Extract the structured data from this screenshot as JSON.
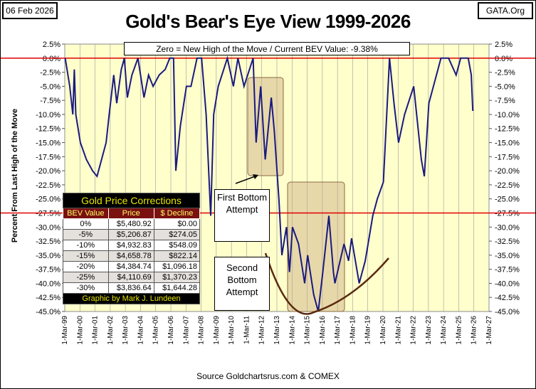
{
  "header": {
    "date": "06 Feb 2026",
    "site": "GATA.Org",
    "title": "Gold's Bear's Eye View 1999-2026",
    "legend_box": "Zero = New High of the Move / Current BEV Value:  -9.38%"
  },
  "footer": {
    "source": "Source Goldchartsrus.com  & COMEX"
  },
  "table": {
    "title": "Gold Price Corrections",
    "headers": [
      "BEV Value",
      "Price",
      "$ Decline"
    ],
    "rows": [
      [
        "0%",
        "$5,480.92",
        "$0.00"
      ],
      [
        "-5%",
        "$5,206.87",
        "$274.05"
      ],
      [
        "-10%",
        "$4,932.83",
        "$548.09"
      ],
      [
        "-15%",
        "$4,658.78",
        "$822.14"
      ],
      [
        "-20%",
        "$4,384.74",
        "$1,096.18"
      ],
      [
        "-25%",
        "$4,110.69",
        "$1,370.23"
      ],
      [
        "-30%",
        "$3,836.64",
        "$1,644.28"
      ]
    ],
    "credit": "Graphic by Mark J. Lundeen"
  },
  "annotations": {
    "first": "First Bottom Attempt",
    "second": "Second Bottom Attempt"
  },
  "chart_data": {
    "type": "line",
    "title": "Gold's Bear's Eye View 1999-2026",
    "ylabel": "Percent From Last High of the Move",
    "xlabel": "",
    "ylim": [
      -45,
      2.5
    ],
    "xlim": [
      1999.17,
      2027.17
    ],
    "yticks": [
      "2.5%",
      "0.0%",
      "-2.5%",
      "-5.0%",
      "-7.5%",
      "-10.0%",
      "-12.5%",
      "-15.0%",
      "-17.5%",
      "-20.0%",
      "-22.5%",
      "-25.0%",
      "-27.5%",
      "-30.0%",
      "-32.5%",
      "-35.0%",
      "-37.5%",
      "-40.0%",
      "-42.5%",
      "-45.0%"
    ],
    "xticks": [
      "1-Mar-99",
      "1-Mar-00",
      "1-Mar-01",
      "1-Mar-02",
      "1-Mar-03",
      "1-Mar-04",
      "1-Mar-05",
      "1-Mar-06",
      "1-Mar-07",
      "1-Mar-08",
      "1-Mar-09",
      "1-Mar-10",
      "1-Mar-11",
      "1-Mar-12",
      "1-Mar-13",
      "1-Mar-14",
      "1-Mar-15",
      "1-Mar-16",
      "1-Mar-17",
      "1-Mar-18",
      "1-Mar-19",
      "1-Mar-20",
      "1-Mar-21",
      "1-Mar-22",
      "1-Mar-23",
      "1-Mar-24",
      "1-Mar-25",
      "1-Mar-26",
      "1-Mar-27"
    ],
    "reference_lines": [
      0,
      -27.5
    ],
    "colors": {
      "series": "#1a1a80",
      "ref": "#e00000",
      "plot_bg": "#ffffcc"
    },
    "series": [
      {
        "name": "BEV",
        "x": [
          1999.2,
          1999.5,
          1999.7,
          1999.8,
          1999.9,
          2000.2,
          2000.6,
          2001.0,
          2001.3,
          2001.6,
          2001.9,
          2002.1,
          2002.4,
          2002.6,
          2002.9,
          2003.1,
          2003.3,
          2003.6,
          2004.0,
          2004.4,
          2004.7,
          2005.0,
          2005.4,
          2005.8,
          2006.1,
          2006.35,
          2006.5,
          2006.8,
          2007.2,
          2007.5,
          2007.9,
          2008.2,
          2008.5,
          2008.8,
          2009.0,
          2009.3,
          2009.9,
          2010.3,
          2010.6,
          2011.0,
          2011.6,
          2011.8,
          2012.1,
          2012.4,
          2012.8,
          2013.0,
          2013.3,
          2013.5,
          2013.8,
          2014.0,
          2014.2,
          2014.6,
          2015.0,
          2015.2,
          2015.6,
          2015.9,
          2016.2,
          2016.6,
          2016.9,
          2017.0,
          2017.6,
          2017.9,
          2018.1,
          2018.6,
          2019.0,
          2019.5,
          2019.8,
          2020.2,
          2020.6,
          2020.9,
          2021.2,
          2021.6,
          2022.2,
          2022.7,
          2022.9,
          2023.2,
          2023.5,
          2024.0,
          2024.5,
          2025.0,
          2025.3,
          2025.8,
          2026.0,
          2026.1
        ],
        "values": [
          0,
          -5,
          -10,
          -2,
          -10,
          -15,
          -18,
          -20,
          -21,
          -18,
          -15,
          -10,
          -3,
          -8,
          -2,
          0,
          -7,
          -3,
          0,
          -7,
          -3,
          -5,
          -3,
          -2,
          0,
          0,
          -20,
          -12,
          -5,
          -5,
          0,
          0,
          -10,
          -28,
          -10,
          -5,
          0,
          -5,
          0,
          -5,
          0,
          -15,
          -5,
          -18,
          -7,
          -13,
          -25,
          -35,
          -30,
          -38,
          -30,
          -33,
          -40,
          -35,
          -42,
          -45,
          -38,
          -28,
          -38,
          -40,
          -33,
          -36,
          -32,
          -40,
          -36,
          -28,
          -25,
          -22,
          0,
          -8,
          -15,
          -10,
          -5,
          -18,
          -21,
          -8,
          -5,
          0,
          0,
          -3,
          0,
          0,
          -3,
          -9.38
        ]
      }
    ]
  }
}
